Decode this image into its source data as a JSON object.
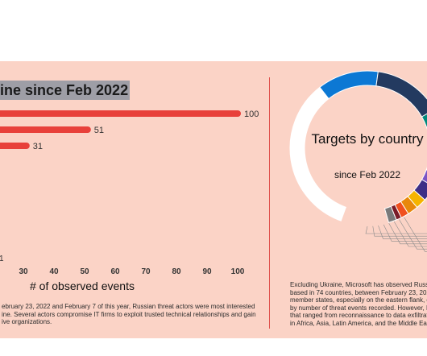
{
  "chart_data": [
    {
      "type": "bar",
      "orientation": "horizontal",
      "title": "ine since Feb 2022",
      "xlabel": "# of observed events",
      "values": [
        100,
        51,
        31
      ],
      "value_labels": [
        "100",
        "51",
        "31"
      ],
      "xticks": [
        "30",
        "40",
        "50",
        "60",
        "70",
        "80",
        "90",
        "100"
      ],
      "partial_tick": "1",
      "xlim": [
        0,
        100
      ],
      "bar_color": "#e8403a"
    },
    {
      "type": "pie",
      "donut": true,
      "title": "Targets by country",
      "subtitle": "since Feb 2022",
      "colors": [
        "#ffffff",
        "#0c78d4",
        "#233a60",
        "#00897b",
        "#1e7a33",
        "#3a9c3a",
        "#7a54c4",
        "#3d2f86",
        "#f5b400",
        "#e8880c",
        "#f0501e",
        "#7a1c28",
        "#7a7a7a"
      ]
    }
  ],
  "footnote_left": [
    "ebruary 23, 2022 and February 7 of this year, Russian threat actors were most interested",
    "ine. Several actors compromise IT firms to exploit trusted technical relationships and gain",
    "ive organizations."
  ],
  "footnote_right": [
    "Excluding Ukraine, Microsoft has observed Russia",
    "based in 74 countries, between February 23, 2022",
    "member states, especially on the eastern flank, do",
    "by number of threat events recorded. However, R",
    "that ranged from reconnaissance to data exfiltrati",
    "in Africa, Asia, Latin America, and the Middle East"
  ]
}
